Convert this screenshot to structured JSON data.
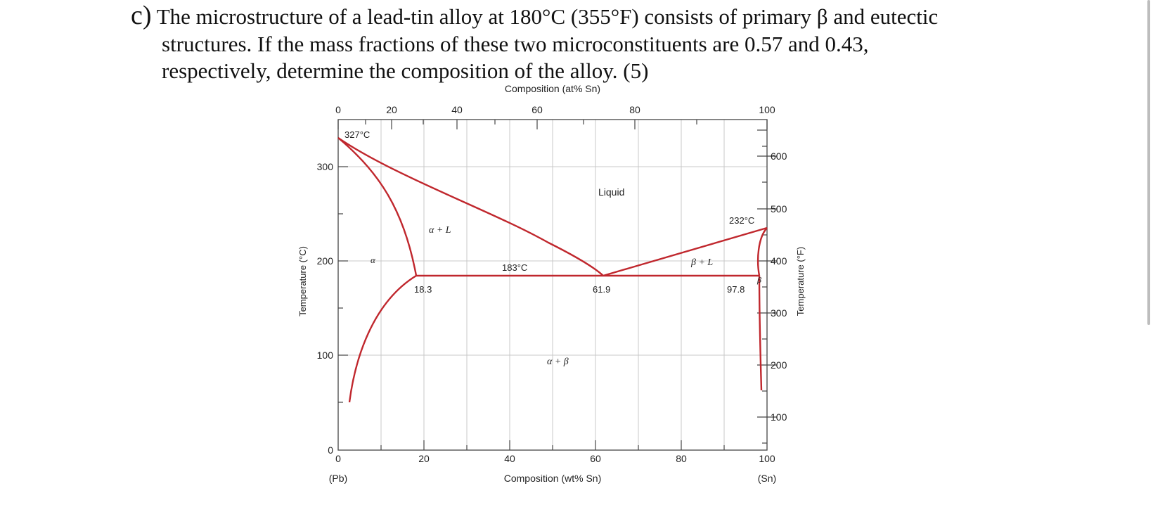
{
  "question": {
    "label": "c)",
    "line1": "The microstructure of a lead-tin alloy at 180°C (355°F) consists of primary β and eutectic",
    "line2": "structures.  If the mass fractions of these two microconstituents are 0.57 and 0.43,",
    "line3": "respectively, determine the composition of the alloy. (5)"
  },
  "diagram": {
    "top_axis_title": "Composition (at% Sn)",
    "top_ticks": [
      "0",
      "20",
      "40",
      "60",
      "80",
      "100"
    ],
    "bottom_axis_title": "Composition (wt% Sn)",
    "bottom_ticks": [
      "0",
      "20",
      "40",
      "60",
      "80",
      "100"
    ],
    "bottom_left_label": "(Pb)",
    "bottom_right_label": "(Sn)",
    "left_axis_title": "Temperature (°C)",
    "left_ticks": [
      "0",
      "100",
      "200",
      "300"
    ],
    "right_axis_title": "Temperature (°F)",
    "right_ticks": [
      "100",
      "200",
      "300",
      "400",
      "500",
      "600"
    ],
    "annotations": {
      "pb_melting": "327°C",
      "sn_melting": "232°C",
      "eutectic_temp": "183°C",
      "alpha_limit": "18.3",
      "eutectic_comp": "61.9",
      "beta_limit": "97.8"
    },
    "regions": {
      "liquid": "Liquid",
      "alpha_plus_liquid": "α + L",
      "beta_plus_liquid": "β + L",
      "alpha_plus_beta": "α + β",
      "alpha": "α",
      "beta": "β"
    },
    "line_color": "#c0272d",
    "grid_color": "#c8c8c8"
  }
}
